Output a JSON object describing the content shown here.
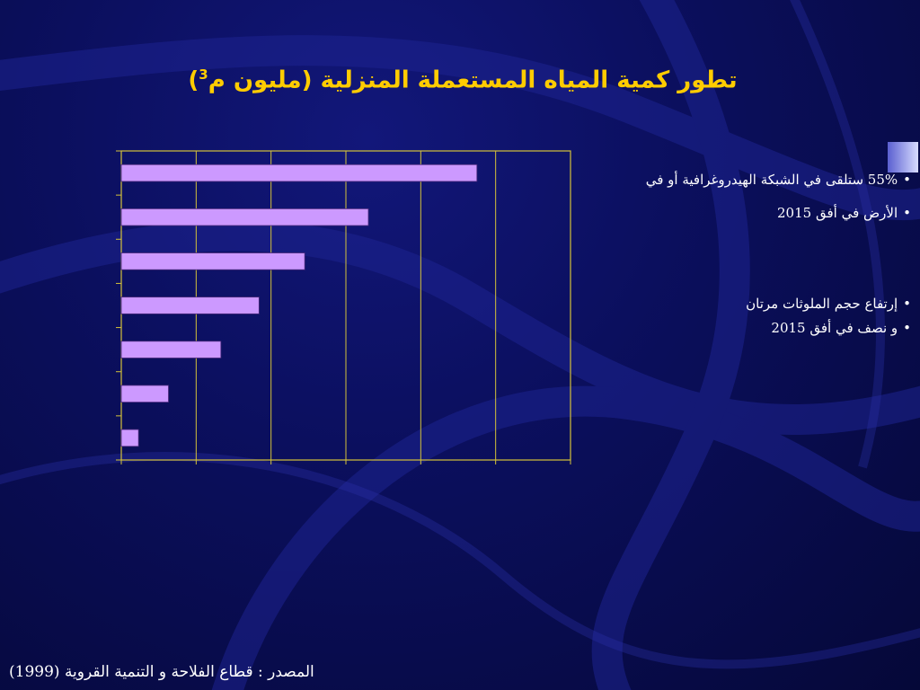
{
  "slide": {
    "title": "تطور كمية المياه المستعملة المنزلية (مليون م",
    "title_sup": "3",
    "title_close": ")",
    "bullets": [
      {
        "mark": "•",
        "text": "55% ستلقى في الشبكة الهيدروغرافية أو في"
      },
      {
        "mark": "•",
        "text": "الأرض في أفق 2015"
      },
      {
        "mark": "•",
        "text": "إرتفاع حجم الملوثات مرتان"
      },
      {
        "mark": "•",
        "text": "و نصف في أفق 2015"
      }
    ],
    "source": "المصدر : قطاع الفلاحة و التنمية القروية (1999)"
  },
  "chart_data": {
    "type": "bar",
    "orientation": "horizontal",
    "categories": [
      "",
      "",
      "",
      "",
      "",
      "",
      ""
    ],
    "values": [
      475,
      330,
      245,
      184,
      133,
      63,
      23
    ],
    "xlim": [
      0,
      600
    ],
    "x_gridlines": [
      0,
      100,
      200,
      300,
      400,
      500,
      600
    ],
    "grid": true,
    "colors": {
      "bar": "#cc99ff",
      "bar_stroke": "#4b2a7a",
      "axis": "#d4c23a",
      "grid": "#d4c23a"
    }
  }
}
